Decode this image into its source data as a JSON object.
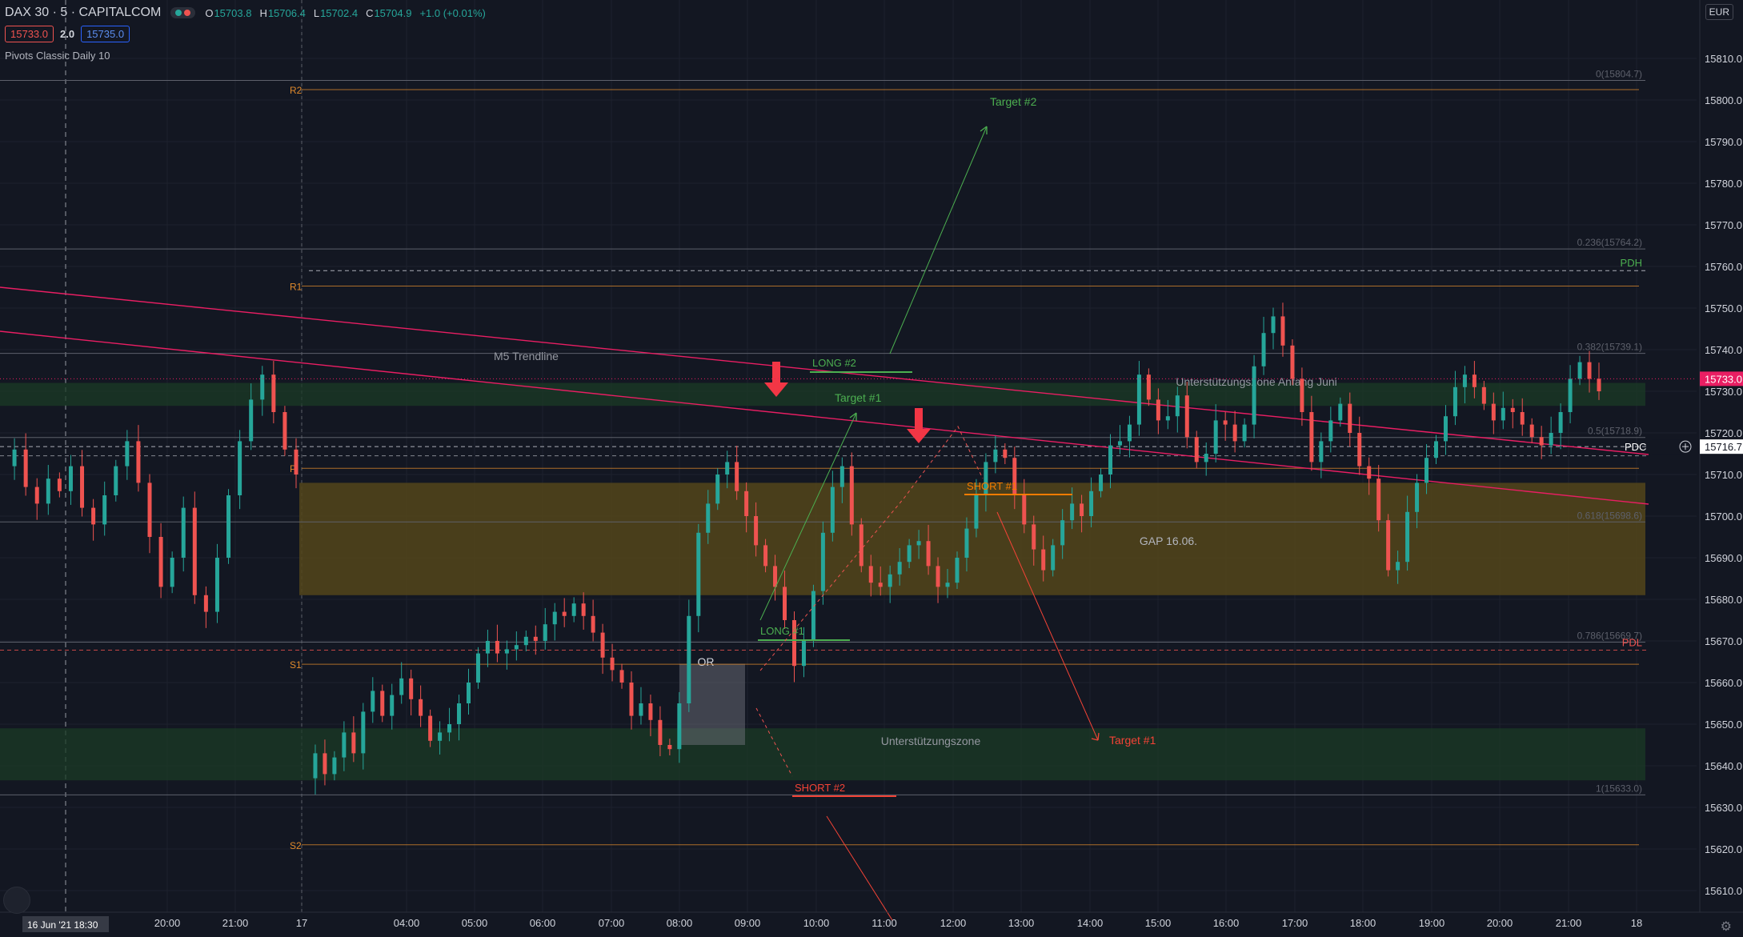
{
  "header": {
    "symbol": "DAX 30 · 5 · CAPITALCOM",
    "ohlc": [
      {
        "label": "O",
        "value": "15703.8"
      },
      {
        "label": "H",
        "value": "15706.4"
      },
      {
        "label": "L",
        "value": "15702.4"
      },
      {
        "label": "C",
        "value": "15704.9"
      },
      {
        "label": "",
        "value": "+1.0 (+0.01%)"
      }
    ],
    "sell_price": "15733.0",
    "spread": "2.0",
    "buy_price": "15735.0",
    "indicator": "Pivots Classic Daily 10",
    "currency": "EUR"
  },
  "colors": {
    "background": "#131722",
    "up_candle": "#26a69a",
    "down_candle": "#ef5350",
    "pivot_line": "#e08a2c",
    "trendline": "#e91e63",
    "long_green": "#4caf50",
    "short_red": "#f44336",
    "gap_zone": "#54451a",
    "support_zone": "#1b3b25"
  },
  "price_axis": {
    "min": 15605,
    "max": 15820,
    "ticks": [
      15610,
      15620,
      15630,
      15640,
      15650,
      15660,
      15670,
      15680,
      15690,
      15700,
      15710,
      15720,
      15730,
      15740,
      15750,
      15760,
      15770,
      15780,
      15790,
      15800,
      15810
    ],
    "tick_labels": [
      "15610.0",
      "15620.0",
      "15630.0",
      "15640.0",
      "15650.0",
      "15660.0",
      "15670.0",
      "15680.0",
      "15690.0",
      "15700.0",
      "15710.0",
      "15720.0",
      "15730.0",
      "15740.0",
      "15750.0",
      "15760.0",
      "15770.0",
      "15780.0",
      "15790.0",
      "15800.0",
      "15810.0"
    ],
    "current_price_label": "15733.0",
    "pdc_tag": "PDC",
    "pdc_value_label": "15716.7"
  },
  "time_axis": {
    "labels": [
      "20:00",
      "21:00",
      "17",
      "04:00",
      "05:00",
      "06:00",
      "07:00",
      "08:00",
      "09:00",
      "10:00",
      "11:00",
      "12:00",
      "13:00",
      "14:00",
      "15:00",
      "16:00",
      "17:00",
      "18:00",
      "19:00",
      "20:00",
      "21:00",
      "18"
    ],
    "crosshair_label": "16 Jun '21    18:30"
  },
  "pivots": [
    {
      "name": "R2",
      "price": 15802.5
    },
    {
      "name": "R1",
      "price": 15755.3
    },
    {
      "name": "P",
      "price": 15711.5
    },
    {
      "name": "S1",
      "price": 15664.4
    },
    {
      "name": "S2",
      "price": 15621.0
    }
  ],
  "fib_levels": [
    {
      "label": "0(15804.7)",
      "price": 15804.7
    },
    {
      "label": "0.236(15764.2)",
      "price": 15764.2
    },
    {
      "label": "0.382(15739.1)",
      "price": 15739.1
    },
    {
      "label": "0.5(15718.9)",
      "price": 15718.9
    },
    {
      "label": "0.618(15698.6)",
      "price": 15698.6
    },
    {
      "label": "0.786(15669.7)",
      "price": 15669.7
    },
    {
      "label": "1(15633.0)",
      "price": 15633.0
    }
  ],
  "reference_lines": [
    {
      "label": "PDH",
      "price": 15759.0
    },
    {
      "label": "PDC",
      "price": 15716.7
    },
    {
      "label": "PDL",
      "price": 15667.8
    }
  ],
  "zones": [
    {
      "label": "GAP 16.06.",
      "from": 15681.0,
      "to": 15708.0
    },
    {
      "label": "Unterstützungszone Anfang Juni",
      "from": 15726.5,
      "to": 15732.0
    },
    {
      "label": "Unterstützungszone",
      "from": 15636.5,
      "to": 15649.0
    }
  ],
  "opening_range": {
    "label": "OR",
    "high": 15664.5,
    "low": 15645.0
  },
  "trendline_label": "M5 Trendline",
  "annotations": {
    "long1": "LONG #1",
    "long2": "LONG #2",
    "short1": "SHORT #1",
    "short2": "SHORT #2",
    "target1_green": "Target #1",
    "target2_green": "Target #2",
    "target1_red": "Target #1"
  },
  "chart_data": {
    "type": "candlestick",
    "title": "DAX 30 · 5 · CAPITALCOM",
    "price_range": [
      15605,
      15820
    ],
    "path_prices": [
      15712,
      15716,
      15707,
      15703,
      15709,
      15706,
      15712,
      15702,
      15698,
      15705,
      15712,
      15718,
      15708,
      15695,
      15683,
      15690,
      15702,
      15681,
      15677,
      15690,
      15705,
      15718,
      15728,
      15734,
      15725,
      15716,
      15710,
      15637,
      15643,
      15638,
      15642,
      15648,
      15643,
      15653,
      15658,
      15652,
      15657,
      15661,
      15656,
      15652,
      15646,
      15648,
      15650,
      15655,
      15660,
      15667,
      15670,
      15667,
      15668,
      15669,
      15671,
      15670,
      15674,
      15677,
      15676,
      15679,
      15676,
      15672,
      15666,
      15663,
      15660,
      15652,
      15655,
      15651,
      15645,
      15644,
      15655,
      15676,
      15696,
      15703,
      15710,
      15713,
      15706,
      15700,
      15693,
      15688,
      15683,
      15675,
      15664,
      15670,
      15682,
      15696,
      15707,
      15712,
      15698,
      15688,
      15684,
      15683,
      15686,
      15689,
      15693,
      15694,
      15688,
      15683,
      15684,
      15690,
      15697,
      15705,
      15713,
      15716,
      15714,
      15705,
      15698,
      15692,
      15687,
      15693,
      15699,
      15703,
      15700,
      15706,
      15710,
      15717,
      15718,
      15722,
      15734,
      15728,
      15723,
      15724,
      15729,
      15719,
      15713,
      15715,
      15723,
      15722,
      15718,
      15722,
      15736,
      15744,
      15748,
      15741,
      15733,
      15725,
      15713,
      15718,
      15723,
      15727,
      15720,
      15712,
      15709,
      15699,
      15687,
      15689,
      15701,
      15708,
      15714,
      15718,
      15724,
      15731,
      15734,
      15731,
      15727,
      15723,
      15726,
      15725,
      15722,
      15719,
      15717,
      15720,
      15725,
      15733,
      15737,
      15733,
      15730
    ]
  }
}
